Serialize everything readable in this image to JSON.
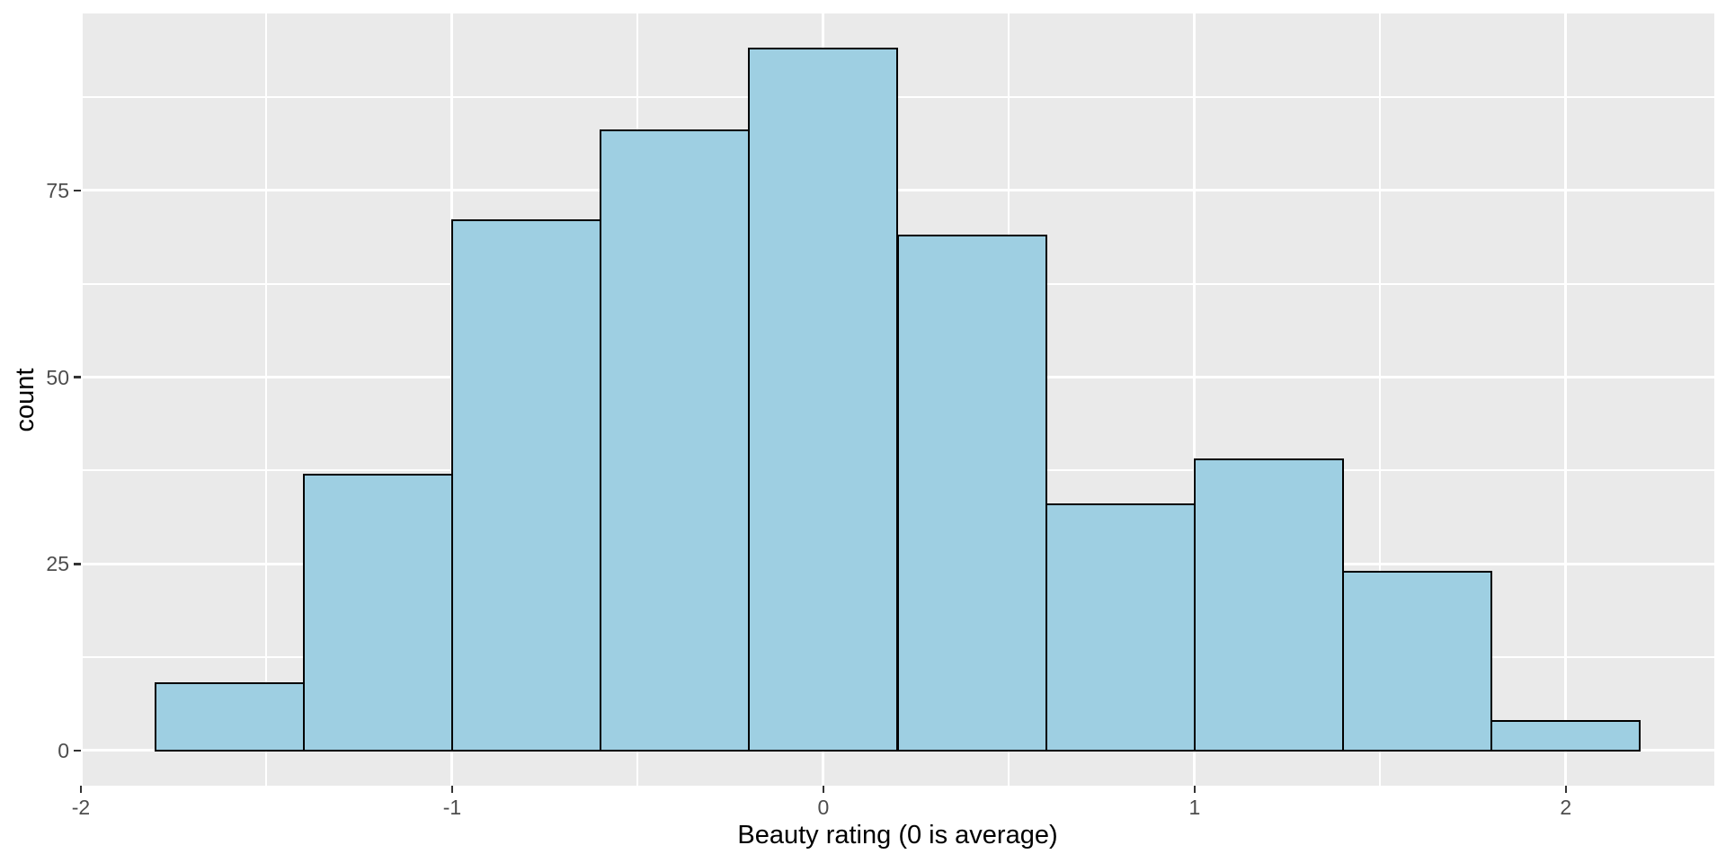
{
  "chart_data": {
    "type": "histogram",
    "title": "",
    "xlabel": "Beauty rating (0 is average)",
    "ylabel": "count",
    "bin_width": 0.4,
    "bin_start": -1.8,
    "bins": [
      {
        "x0": -1.8,
        "x1": -1.4,
        "count": 9
      },
      {
        "x0": -1.4,
        "x1": -1.0,
        "count": 37
      },
      {
        "x0": -1.0,
        "x1": -0.6,
        "count": 71
      },
      {
        "x0": -0.6,
        "x1": -0.2,
        "count": 83
      },
      {
        "x0": -0.2,
        "x1": 0.2,
        "count": 94
      },
      {
        "x0": 0.2,
        "x1": 0.6,
        "count": 69
      },
      {
        "x0": 0.6,
        "x1": 1.0,
        "count": 33
      },
      {
        "x0": 1.0,
        "x1": 1.4,
        "count": 39
      },
      {
        "x0": 1.4,
        "x1": 1.8,
        "count": 24
      },
      {
        "x0": 1.8,
        "x1": 2.2,
        "count": 4
      }
    ],
    "x_ticks": [
      {
        "value": -2,
        "label": "-2"
      },
      {
        "value": -1,
        "label": "-1"
      },
      {
        "value": 0,
        "label": "0"
      },
      {
        "value": 1,
        "label": "1"
      },
      {
        "value": 2,
        "label": "2"
      }
    ],
    "y_ticks": [
      {
        "value": 0,
        "label": "0"
      },
      {
        "value": 25,
        "label": "25"
      },
      {
        "value": 50,
        "label": "50"
      },
      {
        "value": 75,
        "label": "75"
      }
    ],
    "x_minor_ticks": [
      -1.5,
      -0.5,
      0.5,
      1.5
    ],
    "y_minor_ticks": [
      12.5,
      37.5,
      62.5,
      87.5
    ],
    "x_range": [
      -2.0,
      2.4
    ],
    "y_range": [
      -4.7,
      98.7
    ],
    "grid": "on",
    "legend": "none",
    "theme": "ggplot2-grey",
    "colors": {
      "panel_background": "#EAEAEA",
      "figure_background": "#FFFFFF",
      "gridline": "#FFFFFF",
      "bar_fill": "#9ECFE2",
      "bar_stroke": "#000000",
      "tick_label": "#4D4D4D",
      "tick_mark": "#333333",
      "axis_title": "#000000"
    }
  }
}
